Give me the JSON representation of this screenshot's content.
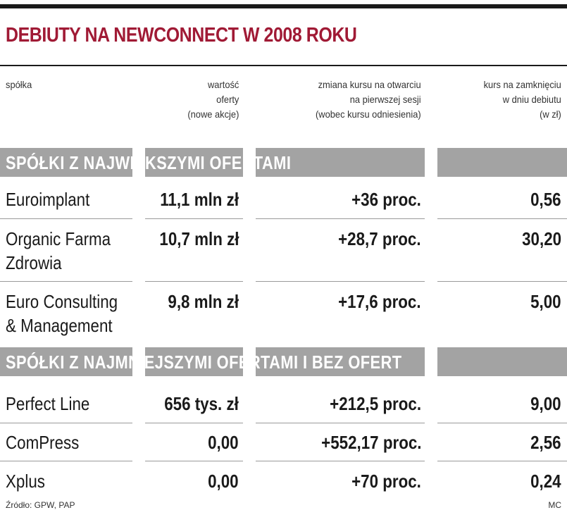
{
  "title": "DEBIUTY NA NEWCONNECT W 2008 ROKU",
  "headers": {
    "company": [
      "spółka"
    ],
    "offer_value": [
      "wartość",
      "oferty",
      "(nowe akcje)"
    ],
    "price_change": [
      "zmiana kursu na otwarciu",
      "na pierwszej sesji",
      "(wobec kursu odniesienia)"
    ],
    "closing_price": [
      "kurs na zamknięciu",
      "w dniu debiutu",
      "(w zł)"
    ]
  },
  "sections": [
    {
      "label": "SPÓŁKI Z NAJWIĘKSZYMI OFERTAMI",
      "rows": [
        {
          "company": [
            "Euroimplant"
          ],
          "offer_value": "11,1 mln zł",
          "price_change": "+36 proc.",
          "closing_price": "0,56"
        },
        {
          "company": [
            "Organic Farma",
            "Zdrowia"
          ],
          "offer_value": "10,7 mln zł",
          "price_change": "+28,7 proc.",
          "closing_price": "30,20"
        },
        {
          "company": [
            "Euro Consulting",
            "& Management"
          ],
          "offer_value": "9,8 mln zł",
          "price_change": "+17,6  proc.",
          "closing_price": "5,00"
        }
      ]
    },
    {
      "label": "SPÓŁKI Z NAJMNIEJSZYMI OFERTAMI I BEZ OFERT",
      "rows": [
        {
          "company": [
            "Perfect Line"
          ],
          "offer_value": "656 tys. zł",
          "price_change": "+212,5 proc.",
          "closing_price": "9,00"
        },
        {
          "company": [
            "ComPress"
          ],
          "offer_value": "0,00",
          "price_change": "+552,17 proc.",
          "closing_price": "2,56"
        },
        {
          "company": [
            "Xplus"
          ],
          "offer_value": "0,00",
          "price_change": "+70 proc.",
          "closing_price": "0,24"
        }
      ]
    }
  ],
  "footer": {
    "source": "Źródło: GPW, PAP",
    "author": "MC"
  },
  "colors": {
    "title": "#a01a35",
    "section_band": "#a3a3a3",
    "rule": "#1a1a1a"
  },
  "chart_data": {
    "type": "table",
    "title": "DEBIUTY NA NEWCONNECT W 2008 ROKU",
    "columns": [
      "spółka",
      "wartość oferty (nowe akcje)",
      "zmiana kursu na otwarciu na pierwszej sesji (wobec kursu odniesienia)",
      "kurs na zamknięciu w dniu debiutu (w zł)"
    ],
    "groups": [
      "SPÓŁKI Z NAJWIĘKSZYMI OFERTAMI",
      "SPÓŁKI Z NAJMNIEJSZYMI OFERTAMI I BEZ OFERT"
    ],
    "rows": [
      [
        "Euroimplant",
        "11,1 mln zł",
        "+36 proc.",
        "0,56"
      ],
      [
        "Organic Farma Zdrowia",
        "10,7 mln zł",
        "+28,7 proc.",
        "30,20"
      ],
      [
        "Euro Consulting & Management",
        "9,8 mln zł",
        "+17,6  proc.",
        "5,00"
      ],
      [
        "Perfect Line",
        "656 tys. zł",
        "+212,5 proc.",
        "9,00"
      ],
      [
        "ComPress",
        "0,00",
        "+552,17 proc.",
        "2,56"
      ],
      [
        "Xplus",
        "0,00",
        "+70 proc.",
        "0,24"
      ]
    ]
  }
}
